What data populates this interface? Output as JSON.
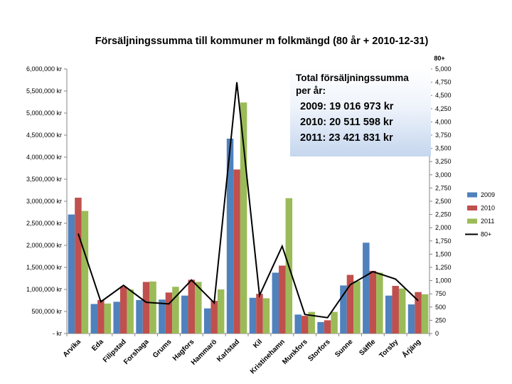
{
  "chart_data": {
    "type": "bar",
    "title": "Försäljningssumma till kommuner m folkmängd (80 år +  2010-12-31)",
    "categories": [
      "Arvika",
      "Eda",
      "Filipstad",
      "Forshaga",
      "Grums",
      "Hagfors",
      "Hammarö",
      "Karlstad",
      "Kil",
      "Kristinehamn",
      "Munkfors",
      "Storfors",
      "Sunne",
      "Säffle",
      "Torsby",
      "Årjäng"
    ],
    "series": [
      {
        "name": "2009",
        "color": "#4f81bd",
        "axis": "left",
        "values": [
          2700000,
          670000,
          720000,
          760000,
          770000,
          860000,
          570000,
          4420000,
          810000,
          1380000,
          430000,
          260000,
          1090000,
          2060000,
          860000,
          660000
        ]
      },
      {
        "name": "2010",
        "color": "#c0504d",
        "axis": "left",
        "values": [
          3080000,
          760000,
          1060000,
          1170000,
          930000,
          1220000,
          740000,
          3720000,
          900000,
          1540000,
          400000,
          300000,
          1330000,
          1420000,
          1080000,
          940000
        ]
      },
      {
        "name": "2011",
        "color": "#9bbb59",
        "axis": "left",
        "values": [
          2780000,
          680000,
          1000000,
          1180000,
          1060000,
          1170000,
          1000000,
          5240000,
          800000,
          3070000,
          490000,
          490000,
          1190000,
          1380000,
          1020000,
          890000
        ]
      },
      {
        "name": "80+",
        "color": "#000000",
        "axis": "right",
        "type": "line",
        "values": [
          1890,
          600,
          910,
          590,
          560,
          1010,
          580,
          4750,
          720,
          1650,
          360,
          300,
          920,
          1170,
          1030,
          620
        ]
      }
    ],
    "left_axis": {
      "min": 0,
      "max": 6000000,
      "tick_labels": [
        "-   kr",
        "500,000 kr",
        "1,000,000 kr",
        "1,500,000 kr",
        "2,000,000 kr",
        "2,500,000 kr",
        "3,000,000 kr",
        "3,500,000 kr",
        "4,000,000 kr",
        "4,500,000 kr",
        "5,000,000 kr",
        "5,500,000 kr",
        "6,000,000 kr"
      ]
    },
    "right_axis": {
      "min": 0,
      "max": 5000,
      "label": "80+",
      "tick_labels": [
        "0",
        "250",
        "500",
        "750",
        "1,000",
        "1,250",
        "1,500",
        "1,750",
        "2,000",
        "2,250",
        "2,500",
        "2,750",
        "3,000",
        "3,250",
        "3,500",
        "3,750",
        "4,000",
        "4,250",
        "4,500",
        "4,750",
        "5,000"
      ]
    },
    "legend_position": "right",
    "grid": false
  },
  "annotation": {
    "heading_1": "Total försäljningssumma",
    "heading_2": "per år:",
    "line_2009": "2009: 19 016 973 kr",
    "line_2010": "2010: 20 511 598 kr",
    "line_2011": "2011: 23 421 831 kr"
  }
}
